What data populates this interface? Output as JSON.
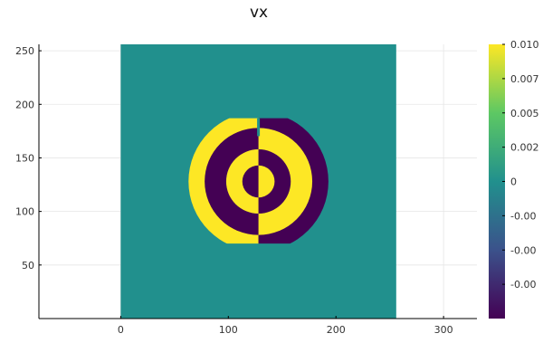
{
  "chart_data": {
    "type": "heatmap",
    "title": "vx",
    "xlabel": "",
    "ylabel": "",
    "xlim": [
      -76,
      331
    ],
    "ylim": [
      0,
      256
    ],
    "x_ticks": [
      0,
      100,
      200,
      300
    ],
    "y_ticks": [
      50,
      100,
      150,
      200,
      250
    ],
    "grid": true,
    "image_extent": {
      "x": [
        0,
        256
      ],
      "y": [
        0,
        256
      ]
    },
    "colormap": "viridis",
    "colormap_stops": [
      "#440154",
      "#3b528b",
      "#21908d",
      "#5dc863",
      "#fde725"
    ],
    "colorbar": {
      "range": [
        -0.01,
        0.01
      ],
      "tick_values": [
        0.01,
        0.0075,
        0.005,
        0.0025,
        0,
        -0.0025,
        -0.005,
        -0.0075
      ],
      "tick_labels": [
        "0.010",
        "0.007",
        "0.005",
        "0.002",
        "0",
        "-0.00",
        "-0.00",
        "-0.00"
      ]
    },
    "background_value": 0,
    "center": [
      128,
      128
    ],
    "rings": [
      {
        "r_inner": 0,
        "r_outer": 15,
        "left_value": -0.01,
        "right_value": 0.01
      },
      {
        "r_inner": 15,
        "r_outer": 30,
        "left_value": 0.01,
        "right_value": -0.01
      },
      {
        "r_inner": 30,
        "r_outer": 50,
        "left_value": -0.01,
        "right_value": 0.01
      },
      {
        "r_inner": 50,
        "r_outer": 65,
        "left_value": 0.01,
        "right_value": -0.01
      }
    ],
    "outer_ring_y_range": [
      70,
      187
    ]
  }
}
